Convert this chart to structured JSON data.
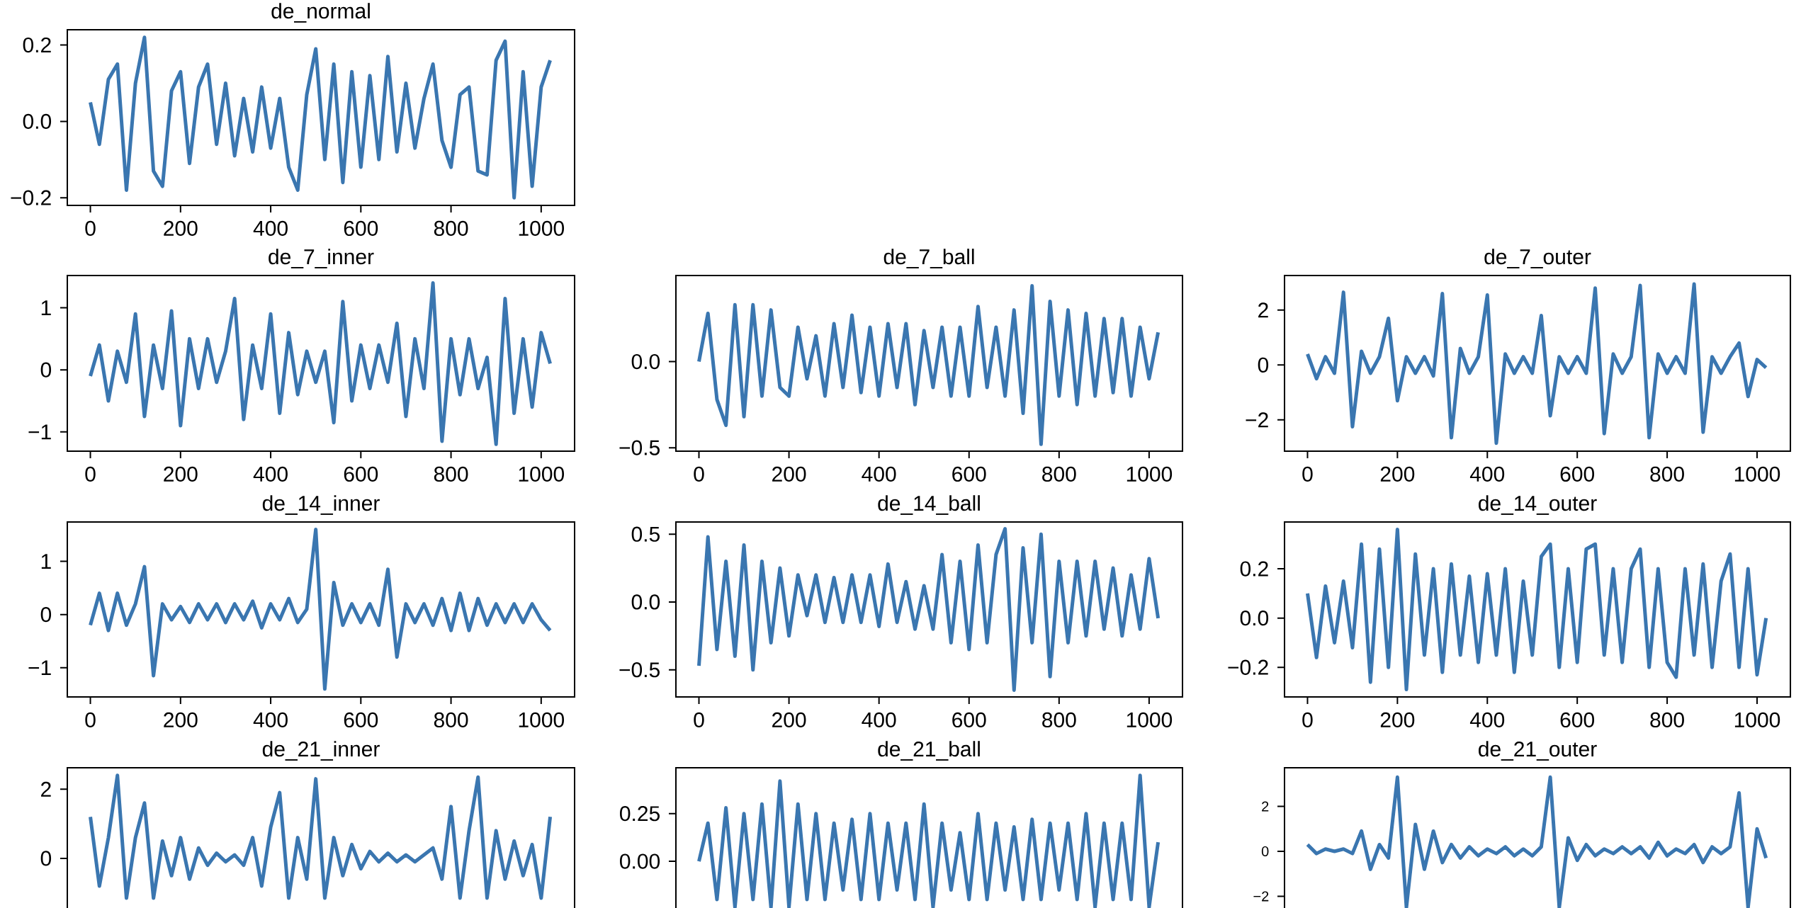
{
  "chart_data": [
    {
      "type": "line",
      "title": "de_normal",
      "color": "#3a76b0",
      "xlim": [
        -51.15,
        1074.15
      ],
      "ylim": [
        -0.22,
        0.24
      ],
      "xticks": [
        0,
        200,
        400,
        600,
        800,
        1000
      ],
      "yticks": [
        {
          "value": -0.2,
          "label": "−0.2"
        },
        {
          "value": 0,
          "label": "0.0"
        },
        {
          "value": 0.2,
          "label": "0.2"
        }
      ],
      "x": [
        0,
        20,
        40,
        60,
        80,
        100,
        120,
        140,
        160,
        180,
        200,
        220,
        240,
        260,
        280,
        300,
        320,
        340,
        360,
        380,
        400,
        420,
        440,
        460,
        480,
        500,
        520,
        540,
        560,
        580,
        600,
        620,
        640,
        660,
        680,
        700,
        720,
        740,
        760,
        780,
        800,
        820,
        840,
        860,
        880,
        900,
        920,
        940,
        960,
        980,
        1000,
        1020
      ],
      "values": [
        0.05,
        -0.06,
        0.11,
        0.15,
        -0.18,
        0.1,
        0.22,
        -0.13,
        -0.17,
        0.08,
        0.13,
        -0.11,
        0.09,
        0.15,
        -0.06,
        0.1,
        -0.09,
        0.06,
        -0.08,
        0.09,
        -0.07,
        0.06,
        -0.12,
        -0.18,
        0.07,
        0.19,
        -0.1,
        0.15,
        -0.16,
        0.13,
        -0.12,
        0.12,
        -0.1,
        0.17,
        -0.08,
        0.1,
        -0.07,
        0.06,
        0.15,
        -0.05,
        -0.12,
        0.07,
        0.09,
        -0.13,
        -0.14,
        0.16,
        0.21,
        -0.2,
        0.13,
        -0.17,
        0.09,
        0.16
      ]
    },
    {
      "type": "line",
      "title": "de_7_inner",
      "color": "#3a76b0",
      "xlim": [
        -51.15,
        1074.15
      ],
      "ylim": [
        -1.31,
        1.52
      ],
      "xticks": [
        0,
        200,
        400,
        600,
        800,
        1000
      ],
      "yticks": [
        {
          "value": -1,
          "label": "−1"
        },
        0,
        1
      ],
      "x": [
        0,
        20,
        40,
        60,
        80,
        100,
        120,
        140,
        160,
        180,
        200,
        220,
        240,
        260,
        280,
        300,
        320,
        340,
        360,
        380,
        400,
        420,
        440,
        460,
        480,
        500,
        520,
        540,
        560,
        580,
        600,
        620,
        640,
        660,
        680,
        700,
        720,
        740,
        760,
        780,
        800,
        820,
        840,
        860,
        880,
        900,
        920,
        940,
        960,
        980,
        1000,
        1020
      ],
      "values": [
        -0.1,
        0.4,
        -0.5,
        0.3,
        -0.2,
        0.9,
        -0.75,
        0.4,
        -0.3,
        0.95,
        -0.9,
        0.5,
        -0.3,
        0.5,
        -0.2,
        0.3,
        1.15,
        -0.8,
        0.4,
        -0.3,
        0.9,
        -0.7,
        0.6,
        -0.4,
        0.3,
        -0.2,
        0.3,
        -0.85,
        1.1,
        -0.5,
        0.4,
        -0.3,
        0.4,
        -0.2,
        0.75,
        -0.75,
        0.5,
        -0.3,
        1.4,
        -1.15,
        0.5,
        -0.4,
        0.5,
        -0.3,
        0.2,
        -1.2,
        1.15,
        -0.7,
        0.5,
        -0.6,
        0.6,
        0.1
      ]
    },
    {
      "type": "line",
      "title": "de_7_ball",
      "color": "#3a76b0",
      "xlim": [
        -51.15,
        1074.15
      ],
      "ylim": [
        -0.52,
        0.5
      ],
      "xticks": [
        0,
        200,
        400,
        600,
        800,
        1000
      ],
      "yticks": [
        {
          "value": -0.5,
          "label": "−0.5"
        },
        {
          "value": 0,
          "label": "0.0"
        }
      ],
      "x": [
        0,
        20,
        40,
        60,
        80,
        100,
        120,
        140,
        160,
        180,
        200,
        220,
        240,
        260,
        280,
        300,
        320,
        340,
        360,
        380,
        400,
        420,
        440,
        460,
        480,
        500,
        520,
        540,
        560,
        580,
        600,
        620,
        640,
        660,
        680,
        700,
        720,
        740,
        760,
        780,
        800,
        820,
        840,
        860,
        880,
        900,
        920,
        940,
        960,
        980,
        1000,
        1020
      ],
      "values": [
        0.0,
        0.28,
        -0.22,
        -0.37,
        0.33,
        -0.32,
        0.33,
        -0.2,
        0.3,
        -0.15,
        -0.2,
        0.2,
        -0.1,
        0.15,
        -0.2,
        0.22,
        -0.15,
        0.27,
        -0.18,
        0.2,
        -0.2,
        0.22,
        -0.15,
        0.22,
        -0.25,
        0.18,
        -0.15,
        0.2,
        -0.2,
        0.2,
        -0.2,
        0.32,
        -0.15,
        0.2,
        -0.2,
        0.3,
        -0.3,
        0.44,
        -0.48,
        0.35,
        -0.2,
        0.3,
        -0.25,
        0.28,
        -0.2,
        0.25,
        -0.18,
        0.25,
        -0.2,
        0.2,
        -0.1,
        0.17
      ]
    },
    {
      "type": "line",
      "title": "de_7_outer",
      "color": "#3a76b0",
      "xlim": [
        -51.15,
        1074.15
      ],
      "ylim": [
        -3.14,
        3.26
      ],
      "xticks": [
        0,
        200,
        400,
        600,
        800,
        1000
      ],
      "yticks": [
        {
          "value": -2,
          "label": "−2"
        },
        0,
        2
      ],
      "x": [
        0,
        20,
        40,
        60,
        80,
        100,
        120,
        140,
        160,
        180,
        200,
        220,
        240,
        260,
        280,
        300,
        320,
        340,
        360,
        380,
        400,
        420,
        440,
        460,
        480,
        500,
        520,
        540,
        560,
        580,
        600,
        620,
        640,
        660,
        680,
        700,
        720,
        740,
        760,
        780,
        800,
        820,
        840,
        860,
        880,
        900,
        920,
        940,
        960,
        980,
        1000,
        1020
      ],
      "values": [
        0.4,
        -0.5,
        0.3,
        -0.3,
        2.65,
        -2.25,
        0.5,
        -0.3,
        0.3,
        1.7,
        -1.3,
        0.3,
        -0.3,
        0.3,
        -0.4,
        2.6,
        -2.65,
        0.6,
        -0.3,
        0.3,
        2.55,
        -2.85,
        0.4,
        -0.3,
        0.3,
        -0.3,
        1.8,
        -1.85,
        0.3,
        -0.3,
        0.3,
        -0.3,
        2.8,
        -2.5,
        0.4,
        -0.3,
        0.3,
        2.9,
        -2.65,
        0.4,
        -0.3,
        0.3,
        -0.3,
        2.95,
        -2.45,
        0.3,
        -0.3,
        0.3,
        0.8,
        -1.15,
        0.2,
        -0.1
      ]
    },
    {
      "type": "line",
      "title": "de_14_inner",
      "color": "#3a76b0",
      "xlim": [
        -51.15,
        1074.15
      ],
      "ylim": [
        -1.55,
        1.74
      ],
      "xticks": [
        0,
        200,
        400,
        600,
        800,
        1000
      ],
      "yticks": [
        {
          "value": -1,
          "label": "−1"
        },
        0,
        1
      ],
      "x": [
        0,
        20,
        40,
        60,
        80,
        100,
        120,
        140,
        160,
        180,
        200,
        220,
        240,
        260,
        280,
        300,
        320,
        340,
        360,
        380,
        400,
        420,
        440,
        460,
        480,
        500,
        520,
        540,
        560,
        580,
        600,
        620,
        640,
        660,
        680,
        700,
        720,
        740,
        760,
        780,
        800,
        820,
        840,
        860,
        880,
        900,
        920,
        940,
        960,
        980,
        1000,
        1020
      ],
      "values": [
        -0.2,
        0.4,
        -0.3,
        0.4,
        -0.2,
        0.2,
        0.9,
        -1.15,
        0.2,
        -0.1,
        0.15,
        -0.15,
        0.2,
        -0.1,
        0.2,
        -0.15,
        0.2,
        -0.1,
        0.25,
        -0.25,
        0.2,
        -0.1,
        0.3,
        -0.15,
        0.1,
        1.6,
        -1.4,
        0.6,
        -0.2,
        0.2,
        -0.15,
        0.2,
        -0.2,
        0.85,
        -0.8,
        0.2,
        -0.15,
        0.2,
        -0.2,
        0.3,
        -0.3,
        0.4,
        -0.3,
        0.3,
        -0.2,
        0.2,
        -0.15,
        0.2,
        -0.15,
        0.2,
        -0.1,
        -0.3
      ]
    },
    {
      "type": "line",
      "title": "de_14_ball",
      "color": "#3a76b0",
      "xlim": [
        -51.15,
        1074.15
      ],
      "ylim": [
        -0.7,
        0.59
      ],
      "xticks": [
        0,
        200,
        400,
        600,
        800,
        1000
      ],
      "yticks": [
        {
          "value": -0.5,
          "label": "−0.5"
        },
        {
          "value": 0,
          "label": "0.0"
        },
        {
          "value": 0.5,
          "label": "0.5"
        }
      ],
      "x": [
        0,
        20,
        40,
        60,
        80,
        100,
        120,
        140,
        160,
        180,
        200,
        220,
        240,
        260,
        280,
        300,
        320,
        340,
        360,
        380,
        400,
        420,
        440,
        460,
        480,
        500,
        520,
        540,
        560,
        580,
        600,
        620,
        640,
        660,
        680,
        700,
        720,
        740,
        760,
        780,
        800,
        820,
        840,
        860,
        880,
        900,
        920,
        940,
        960,
        980,
        1000,
        1020
      ],
      "values": [
        -0.47,
        0.48,
        -0.35,
        0.3,
        -0.4,
        0.42,
        -0.5,
        0.3,
        -0.3,
        0.25,
        -0.25,
        0.2,
        -0.1,
        0.2,
        -0.15,
        0.18,
        -0.15,
        0.2,
        -0.15,
        0.2,
        -0.18,
        0.28,
        -0.15,
        0.15,
        -0.2,
        0.12,
        -0.2,
        0.35,
        -0.3,
        0.3,
        -0.35,
        0.42,
        -0.3,
        0.35,
        0.54,
        -0.65,
        0.4,
        -0.3,
        0.5,
        -0.55,
        0.3,
        -0.3,
        0.3,
        -0.25,
        0.3,
        -0.2,
        0.25,
        -0.25,
        0.2,
        -0.2,
        0.32,
        -0.12
      ]
    },
    {
      "type": "line",
      "title": "de_14_outer",
      "color": "#3a76b0",
      "xlim": [
        -51.15,
        1074.15
      ],
      "ylim": [
        -0.32,
        0.39
      ],
      "xticks": [
        0,
        200,
        400,
        600,
        800,
        1000
      ],
      "yticks": [
        {
          "value": -0.2,
          "label": "−0.2"
        },
        {
          "value": 0,
          "label": "0.0"
        },
        {
          "value": 0.2,
          "label": "0.2"
        }
      ],
      "x": [
        0,
        20,
        40,
        60,
        80,
        100,
        120,
        140,
        160,
        180,
        200,
        220,
        240,
        260,
        280,
        300,
        320,
        340,
        360,
        380,
        400,
        420,
        440,
        460,
        480,
        500,
        520,
        540,
        560,
        580,
        600,
        620,
        640,
        660,
        680,
        700,
        720,
        740,
        760,
        780,
        800,
        820,
        840,
        860,
        880,
        900,
        920,
        940,
        960,
        980,
        1000,
        1020
      ],
      "values": [
        0.1,
        -0.16,
        0.13,
        -0.1,
        0.15,
        -0.12,
        0.3,
        -0.26,
        0.28,
        -0.2,
        0.36,
        -0.29,
        0.26,
        -0.15,
        0.2,
        -0.22,
        0.22,
        -0.15,
        0.17,
        -0.18,
        0.18,
        -0.15,
        0.2,
        -0.22,
        0.15,
        -0.15,
        0.25,
        0.3,
        -0.2,
        0.2,
        -0.18,
        0.28,
        0.3,
        -0.15,
        0.2,
        -0.18,
        0.2,
        0.28,
        -0.2,
        0.2,
        -0.18,
        -0.24,
        0.2,
        -0.15,
        0.22,
        -0.2,
        0.15,
        0.26,
        -0.2,
        0.2,
        -0.23,
        0.0
      ]
    },
    {
      "type": "line",
      "title": "de_21_inner",
      "color": "#3a76b0",
      "xlim": [
        -51.15,
        1074.15
      ],
      "ylim": [
        -2.46,
        2.62
      ],
      "yticks": [
        0,
        2
      ],
      "tick_labels": "y",
      "x": [
        0,
        20,
        40,
        60,
        80,
        100,
        120,
        140,
        160,
        180,
        200,
        220,
        240,
        260,
        280,
        300,
        320,
        340,
        360,
        380,
        400,
        420,
        440,
        460,
        480,
        500,
        520,
        540,
        560,
        580,
        600,
        620,
        640,
        660,
        680,
        700,
        720,
        740,
        760,
        780,
        800,
        820,
        840,
        860,
        880,
        900,
        920,
        940,
        960,
        980,
        1000,
        1020
      ],
      "values": [
        1.2,
        -0.8,
        0.6,
        2.4,
        -1.15,
        0.6,
        1.6,
        -1.15,
        0.5,
        -0.5,
        0.6,
        -0.6,
        0.3,
        -0.2,
        0.15,
        -0.1,
        0.1,
        -0.2,
        0.6,
        -0.8,
        0.9,
        1.9,
        -1.15,
        0.6,
        -0.6,
        2.3,
        -1.15,
        0.6,
        -0.5,
        0.4,
        -0.3,
        0.2,
        -0.1,
        0.15,
        -0.1,
        0.1,
        -0.1,
        0.1,
        0.3,
        -0.6,
        1.5,
        -1.15,
        0.8,
        2.35,
        -1.15,
        0.8,
        -0.6,
        0.5,
        -0.5,
        0.4,
        -1.15,
        1.2
      ]
    },
    {
      "type": "line",
      "title": "de_21_ball",
      "color": "#3a76b0",
      "xlim": [
        -51.15,
        1074.15
      ],
      "ylim": [
        -0.43,
        0.49
      ],
      "yticks": [
        {
          "value": 0,
          "label": "0.00"
        },
        {
          "value": 0.25,
          "label": "0.25"
        }
      ],
      "tick_labels": "y",
      "x": [
        0,
        20,
        40,
        60,
        80,
        100,
        120,
        140,
        160,
        180,
        200,
        220,
        240,
        260,
        280,
        300,
        320,
        340,
        360,
        380,
        400,
        420,
        440,
        460,
        480,
        500,
        520,
        540,
        560,
        580,
        600,
        620,
        640,
        660,
        680,
        700,
        720,
        740,
        760,
        780,
        800,
        820,
        840,
        860,
        880,
        900,
        920,
        940,
        960,
        980,
        1000,
        1020
      ],
      "values": [
        0.0,
        0.2,
        -0.2,
        0.28,
        -0.24,
        0.25,
        -0.2,
        0.3,
        -0.24,
        0.42,
        -0.24,
        0.3,
        -0.2,
        0.25,
        -0.2,
        0.2,
        -0.15,
        0.22,
        -0.2,
        0.25,
        -0.2,
        0.2,
        -0.15,
        0.2,
        -0.2,
        0.3,
        -0.24,
        0.2,
        -0.15,
        0.15,
        -0.2,
        0.25,
        -0.2,
        0.2,
        -0.15,
        0.18,
        -0.2,
        0.22,
        -0.2,
        0.2,
        -0.15,
        0.2,
        -0.2,
        0.25,
        -0.24,
        0.2,
        -0.2,
        0.2,
        -0.2,
        0.45,
        -0.24,
        0.1
      ]
    },
    {
      "type": "line",
      "title": "de_21_outer",
      "color": "#3a76b0",
      "xlim": [
        -51.15,
        1074.15
      ],
      "ylim": [
        -4.1,
        3.72
      ],
      "yticks": [
        {
          "value": -2,
          "label": "−2"
        },
        0,
        2
      ],
      "tick_labels": "y",
      "x": [
        0,
        20,
        40,
        60,
        80,
        100,
        120,
        140,
        160,
        180,
        200,
        220,
        240,
        260,
        280,
        300,
        320,
        340,
        360,
        380,
        400,
        420,
        440,
        460,
        480,
        500,
        520,
        540,
        560,
        580,
        600,
        620,
        640,
        660,
        680,
        700,
        720,
        740,
        760,
        780,
        800,
        820,
        840,
        860,
        880,
        900,
        920,
        940,
        960,
        980,
        1000,
        1020
      ],
      "values": [
        0.3,
        -0.1,
        0.1,
        0.0,
        0.1,
        -0.1,
        0.9,
        -0.8,
        0.3,
        -0.3,
        3.3,
        -2.5,
        1.2,
        -0.8,
        0.9,
        -0.5,
        0.3,
        -0.3,
        0.2,
        -0.2,
        0.1,
        -0.1,
        0.2,
        -0.2,
        0.1,
        -0.2,
        0.2,
        3.3,
        -2.5,
        0.6,
        -0.4,
        0.3,
        -0.2,
        0.1,
        -0.1,
        0.2,
        -0.1,
        0.2,
        -0.3,
        0.4,
        -0.2,
        0.1,
        -0.1,
        0.3,
        -0.5,
        0.2,
        -0.1,
        0.2,
        2.6,
        -2.5,
        1.0,
        -0.3
      ]
    }
  ]
}
